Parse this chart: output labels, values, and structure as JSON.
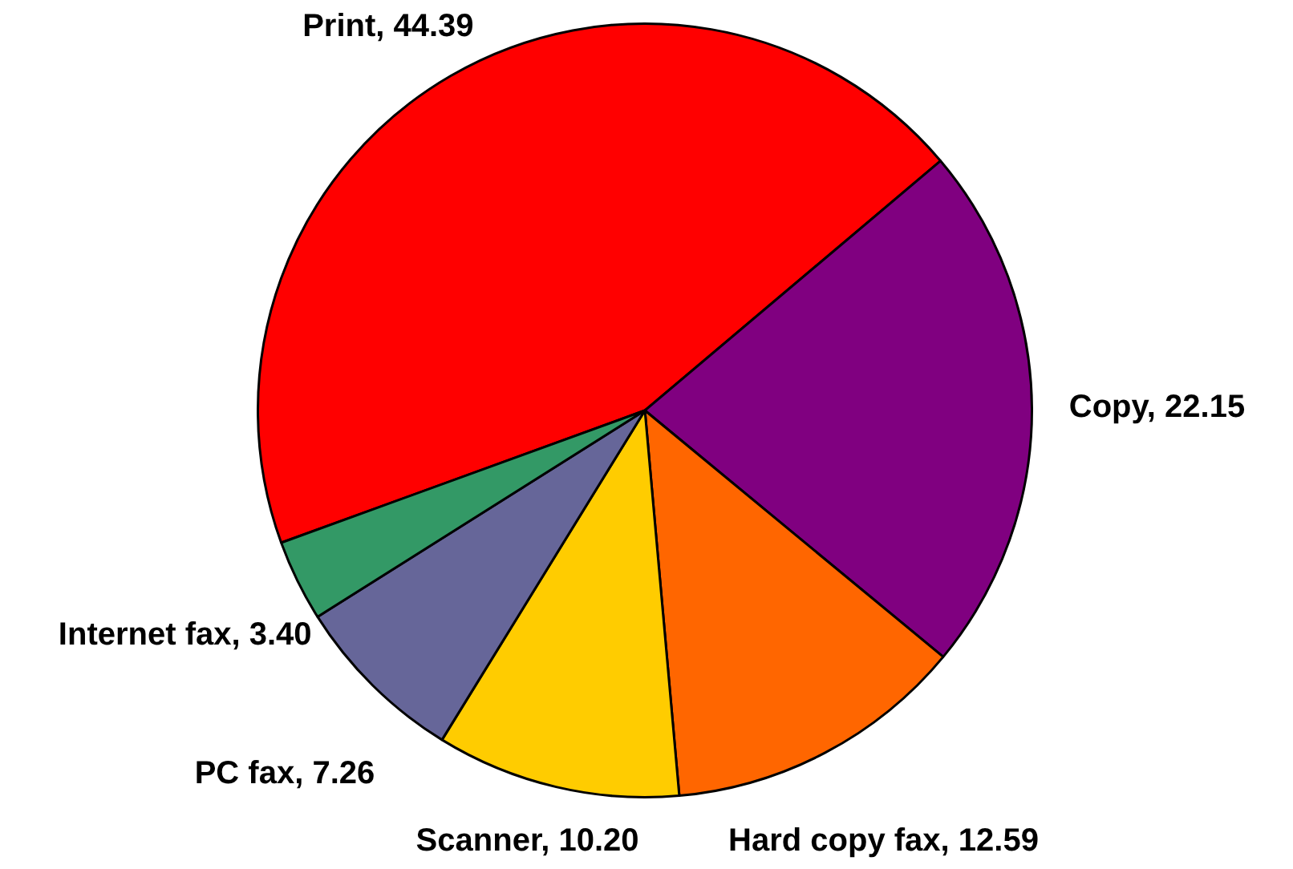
{
  "chart_data": {
    "type": "pie",
    "categories": [
      "Print",
      "Copy",
      "Hard copy fax",
      "Scanner",
      "PC fax",
      "Internet fax"
    ],
    "values": [
      44.39,
      22.15,
      12.59,
      10.2,
      7.26,
      3.4
    ],
    "value_labels": [
      "44.39",
      "22.15",
      "12.59",
      "10.20",
      "7.26",
      "3.40"
    ],
    "colors": [
      "#ff0000",
      "#800080",
      "#ff6600",
      "#ffcc00",
      "#666699",
      "#339966"
    ],
    "legend": false
  }
}
